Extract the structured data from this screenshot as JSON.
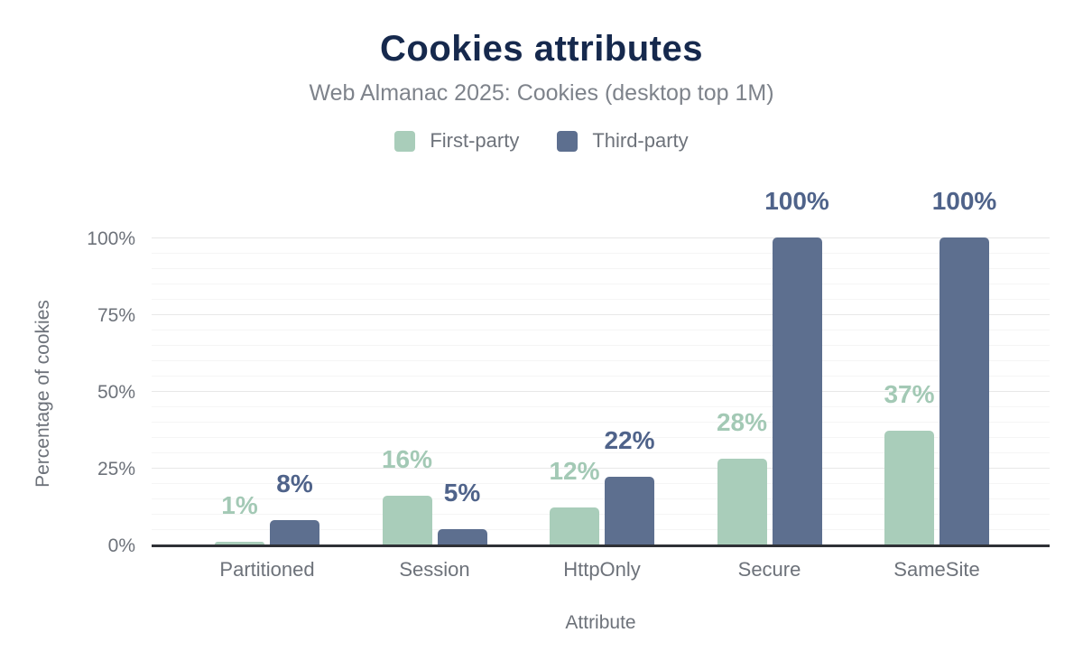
{
  "header": {
    "title": "Cookies attributes",
    "subtitle": "Web Almanac 2025: Cookies (desktop top 1M)"
  },
  "colors": {
    "title_navy": "#16294d",
    "subtitle_gray": "#7e838b",
    "legend_text_gray": "#6e737b",
    "axis_text_gray": "#6d727a",
    "first_party_green": "#a9cdba",
    "third_party_slate": "#5d6f8f",
    "first_party_label": "#a3c9b5",
    "third_party_label": "#4f638a",
    "grid_minor": "#f5f5f5",
    "grid_major": "#e8e8e8",
    "axis_line": "#2f3136",
    "background": "#ffffff"
  },
  "legend": {
    "items": [
      {
        "label": "First-party",
        "color": "#a9cdba"
      },
      {
        "label": "Third-party",
        "color": "#5d6f8f"
      }
    ]
  },
  "chart_data": {
    "type": "bar",
    "title": "Cookies attributes",
    "subtitle": "Web Almanac 2025: Cookies (desktop top 1M)",
    "xlabel": "Attribute",
    "ylabel": "Percentage of cookies",
    "categories": [
      "Partitioned",
      "Session",
      "HttpOnly",
      "Secure",
      "SameSite"
    ],
    "series": [
      {
        "name": "First-party",
        "color": "#a9cdba",
        "label_color": "#a3c9b5",
        "values": [
          1,
          16,
          12,
          28,
          37
        ],
        "labels": [
          "1%",
          "16%",
          "12%",
          "28%",
          "37%"
        ]
      },
      {
        "name": "Third-party",
        "color": "#5d6f8f",
        "label_color": "#4f638a",
        "values": [
          8,
          5,
          22,
          100,
          100
        ],
        "labels": [
          "8%",
          "5%",
          "22%",
          "100%",
          "100%"
        ]
      }
    ],
    "ylim": [
      0,
      100
    ],
    "yticks": [
      {
        "value": 0,
        "label": "0%"
      },
      {
        "value": 25,
        "label": "25%"
      },
      {
        "value": 50,
        "label": "50%"
      },
      {
        "value": 75,
        "label": "75%"
      },
      {
        "value": 100,
        "label": "100%"
      }
    ],
    "grid": {
      "minor_step": 5,
      "major_step": 25,
      "minor_on": true,
      "major_on": true
    },
    "legend_position": "top"
  }
}
